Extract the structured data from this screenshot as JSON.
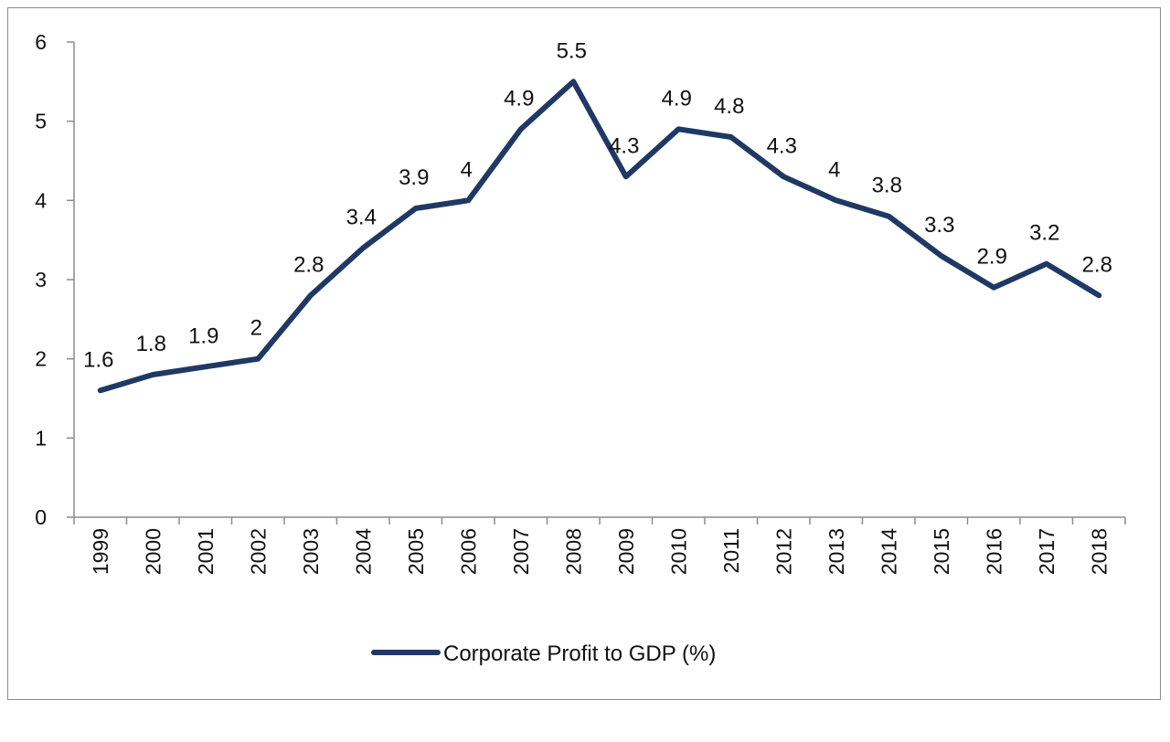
{
  "chart_data": {
    "type": "line",
    "categories": [
      "1999",
      "2000",
      "2001",
      "2002",
      "2003",
      "2004",
      "2005",
      "2006",
      "2007",
      "2008",
      "2009",
      "2010",
      "2011",
      "2012",
      "2013",
      "2014",
      "2015",
      "2016",
      "2017",
      "2018"
    ],
    "series": [
      {
        "name": "Corporate Profit to GDP (%)",
        "values": [
          1.6,
          1.8,
          1.9,
          2,
          2.8,
          3.4,
          3.9,
          4,
          4.9,
          5.5,
          4.3,
          4.9,
          4.8,
          4.3,
          4,
          3.8,
          3.3,
          2.9,
          3.2,
          2.8
        ],
        "data_labels": [
          "1.6",
          "1.8",
          "1.9",
          "2",
          "2.8",
          "3.4",
          "3.9",
          "4",
          "4.9",
          "5.5",
          "4.3",
          "4.9",
          "4.8",
          "4.3",
          "4",
          "3.8",
          "3.3",
          "2.9",
          "3.2",
          "2.8"
        ],
        "color": "#1f3864"
      }
    ],
    "ylim": [
      0,
      6
    ],
    "yticks": [
      "0",
      "1",
      "2",
      "3",
      "4",
      "5",
      "6"
    ],
    "grid": false,
    "legend_position": "bottom",
    "title": "",
    "xlabel": "",
    "ylabel": ""
  }
}
